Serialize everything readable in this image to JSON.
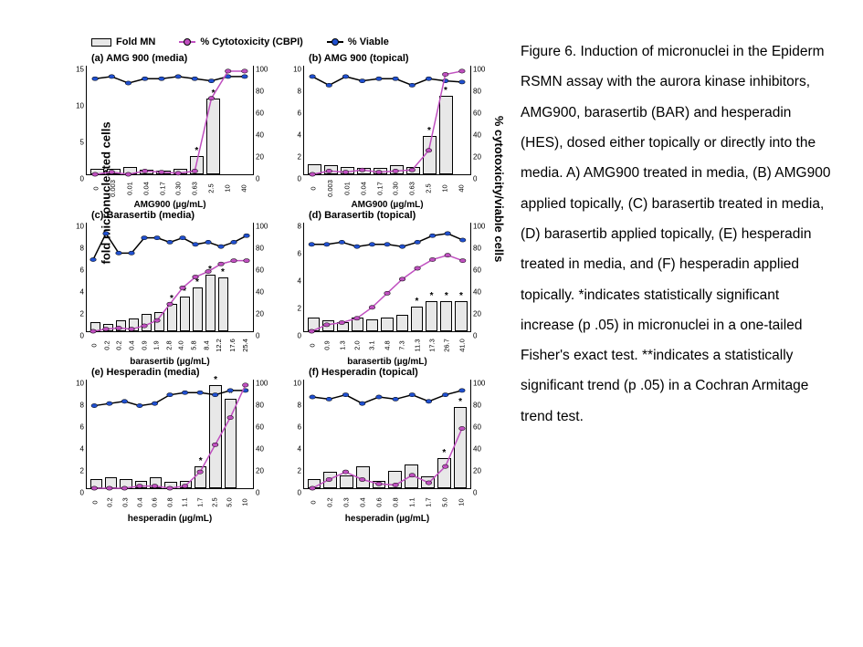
{
  "caption": "Figure 6. Induction of micronuclei in the Epiderm RSMN assay with the aurora kinase inhibitors, AMG900, barasertib (BAR) and hesperadin (HES), dosed either topically or directly into the media. A) AMG900 treated in media, (B) AMG900 applied topically, (C) barasertib treated in media, (D) barasertib applied topically, (E) hesperadin treated in media, and (F) hesperadin applied topically. *indicates statistically significant increase (p  .05) in micronuclei in a one-tailed Fisher's exact test. **indicates a statistically significant trend (p .05) in a Cochran Armitage trend test.",
  "legend": {
    "foldMN": "Fold MN",
    "cyto": "% Cytotoxicity (CBPI)",
    "viable": "% Viable"
  },
  "global": {
    "ylabel_left": "fold micronucleated cells",
    "ylabel_right": "% cytotoxicity/viable cells",
    "colors": {
      "bar_fill": "#e8e8e8",
      "bar_stroke": "#000000",
      "cyto_line": "#c050c0",
      "cyto_marker": "#c050c0",
      "viable_line": "#000000",
      "viable_marker": "#2050d0",
      "axis": "#000000",
      "background": "#ffffff"
    },
    "fontsize_title": 11,
    "fontsize_tick": 8,
    "fontsize_xlabel": 10,
    "marker_size": 5,
    "line_width": 1.5
  },
  "panels": [
    {
      "id": "a",
      "title": "(a) AMG 900 (media)",
      "xlabel": "AMG900 (µg/mL)",
      "y_left_max": 15,
      "y_left_ticks": [
        0,
        5,
        10,
        15
      ],
      "y_right_max": 100,
      "y_right_ticks": [
        0,
        20,
        40,
        60,
        80,
        100
      ],
      "categories": [
        "0",
        "0.003",
        "0.01",
        "0.04",
        "0.17",
        "0.30",
        "0.63",
        "2.5",
        "10",
        "40"
      ],
      "bars": [
        0.8,
        0.7,
        1.0,
        0.6,
        0.5,
        0.7,
        2.5,
        10.5,
        null,
        null
      ],
      "stars": [
        false,
        false,
        false,
        false,
        false,
        false,
        true,
        true,
        false,
        false
      ],
      "cyto": [
        0,
        2,
        0,
        3,
        2,
        1,
        3,
        70,
        95,
        95
      ],
      "viable": [
        88,
        90,
        84,
        88,
        88,
        90,
        88,
        86,
        90,
        90
      ]
    },
    {
      "id": "b",
      "title": "(b) AMG 900 (topical)",
      "xlabel": "AMG900 (µg/mL)",
      "y_left_max": 10,
      "y_left_ticks": [
        0,
        2,
        4,
        6,
        8,
        10
      ],
      "y_right_max": 100,
      "y_right_ticks": [
        0,
        20,
        40,
        60,
        80,
        100
      ],
      "categories": [
        "0",
        "0.003",
        "0.01",
        "0.04",
        "0.17",
        "0.30",
        "0.63",
        "2.5",
        "10",
        "40"
      ],
      "bars": [
        0.9,
        0.8,
        0.7,
        0.6,
        0.6,
        0.8,
        0.7,
        3.5,
        7.2,
        null
      ],
      "stars": [
        false,
        false,
        false,
        false,
        false,
        false,
        false,
        true,
        true,
        false
      ],
      "cyto": [
        0,
        3,
        2,
        4,
        2,
        3,
        4,
        22,
        92,
        95
      ],
      "viable": [
        90,
        82,
        90,
        86,
        88,
        88,
        82,
        88,
        86,
        85
      ]
    },
    {
      "id": "c",
      "title": "(c) Barasertib (media)",
      "xlabel": "barasertib (µg/mL)",
      "y_left_max": 10,
      "y_left_ticks": [
        0,
        2,
        4,
        6,
        8,
        10
      ],
      "y_right_max": 100,
      "y_right_ticks": [
        0,
        20,
        40,
        60,
        80,
        100
      ],
      "categories": [
        "0",
        "0.2",
        "0.2",
        "0.4",
        "0.9",
        "1.9",
        "2.8",
        "4.0",
        "5.8",
        "8.4",
        "12.2",
        "17.6",
        "25.4"
      ],
      "bars": [
        0.8,
        0.7,
        1.0,
        1.2,
        1.6,
        1.8,
        2.5,
        3.2,
        4.0,
        5.2,
        5.0,
        null,
        null
      ],
      "stars": [
        false,
        false,
        false,
        false,
        false,
        false,
        true,
        true,
        true,
        true,
        true,
        false,
        false
      ],
      "cyto": [
        0,
        2,
        3,
        2,
        5,
        10,
        25,
        40,
        50,
        55,
        62,
        65,
        65
      ],
      "viable": [
        66,
        90,
        72,
        72,
        86,
        86,
        82,
        86,
        80,
        82,
        78,
        82,
        88
      ]
    },
    {
      "id": "d",
      "title": "(d) Barasertib (topical)",
      "xlabel": "barasertib (µg/mL)",
      "y_left_max": 8,
      "y_left_ticks": [
        0,
        2,
        4,
        6,
        8
      ],
      "y_right_max": 100,
      "y_right_ticks": [
        0,
        20,
        40,
        60,
        80,
        100
      ],
      "categories": [
        "0",
        "0.9",
        "1.3",
        "2.0",
        "3.1",
        "4.8",
        "7.3",
        "11.3",
        "17.3",
        "26.7",
        "41.0"
      ],
      "bars": [
        1.0,
        0.8,
        0.7,
        1.0,
        0.9,
        1.0,
        1.2,
        1.8,
        2.2,
        2.2,
        2.2
      ],
      "stars": [
        false,
        false,
        false,
        false,
        false,
        false,
        false,
        true,
        true,
        true,
        true
      ],
      "cyto": [
        0,
        6,
        8,
        12,
        22,
        35,
        48,
        58,
        66,
        70,
        65
      ],
      "viable": [
        80,
        80,
        82,
        78,
        80,
        80,
        78,
        82,
        88,
        90,
        84
      ]
    },
    {
      "id": "e",
      "title": "(e) Hesperadin (media)",
      "xlabel": "hesperadin (µg/mL)",
      "y_left_max": 10,
      "y_left_ticks": [
        0,
        2,
        4,
        6,
        8,
        10
      ],
      "y_right_max": 100,
      "y_right_ticks": [
        0,
        20,
        40,
        60,
        80,
        100
      ],
      "categories": [
        "0",
        "0.2",
        "0.3",
        "0.4",
        "0.6",
        "0.8",
        "1.1",
        "1.7",
        "2.5",
        "5.0",
        "10"
      ],
      "bars": [
        0.8,
        1.0,
        0.8,
        0.7,
        1.0,
        0.6,
        0.7,
        2.0,
        9.5,
        8.2,
        null
      ],
      "stars": [
        false,
        false,
        false,
        false,
        false,
        false,
        false,
        true,
        true,
        true,
        false
      ],
      "cyto": [
        0,
        0,
        0,
        2,
        2,
        0,
        2,
        15,
        40,
        65,
        95
      ],
      "viable": [
        76,
        78,
        80,
        76,
        78,
        86,
        88,
        88,
        86,
        90,
        90
      ]
    },
    {
      "id": "f",
      "title": "(f) Hesperadin (topical)",
      "xlabel": "hesperadin (µg/mL)",
      "y_left_max": 10,
      "y_left_ticks": [
        0,
        2,
        4,
        6,
        8,
        10
      ],
      "y_right_max": 100,
      "y_right_ticks": [
        0,
        20,
        40,
        60,
        80,
        100
      ],
      "categories": [
        "0",
        "0.2",
        "0.3",
        "0.4",
        "0.6",
        "0.8",
        "1.1",
        "1.7",
        "5.0",
        "10"
      ],
      "bars": [
        0.8,
        1.5,
        1.2,
        2.0,
        0.7,
        1.6,
        2.2,
        1.1,
        2.8,
        7.5
      ],
      "stars": [
        false,
        false,
        false,
        false,
        false,
        false,
        false,
        false,
        true,
        true
      ],
      "cyto": [
        0,
        8,
        15,
        8,
        4,
        3,
        12,
        5,
        20,
        55
      ],
      "viable": [
        84,
        82,
        86,
        78,
        84,
        82,
        86,
        80,
        86,
        90
      ]
    }
  ]
}
